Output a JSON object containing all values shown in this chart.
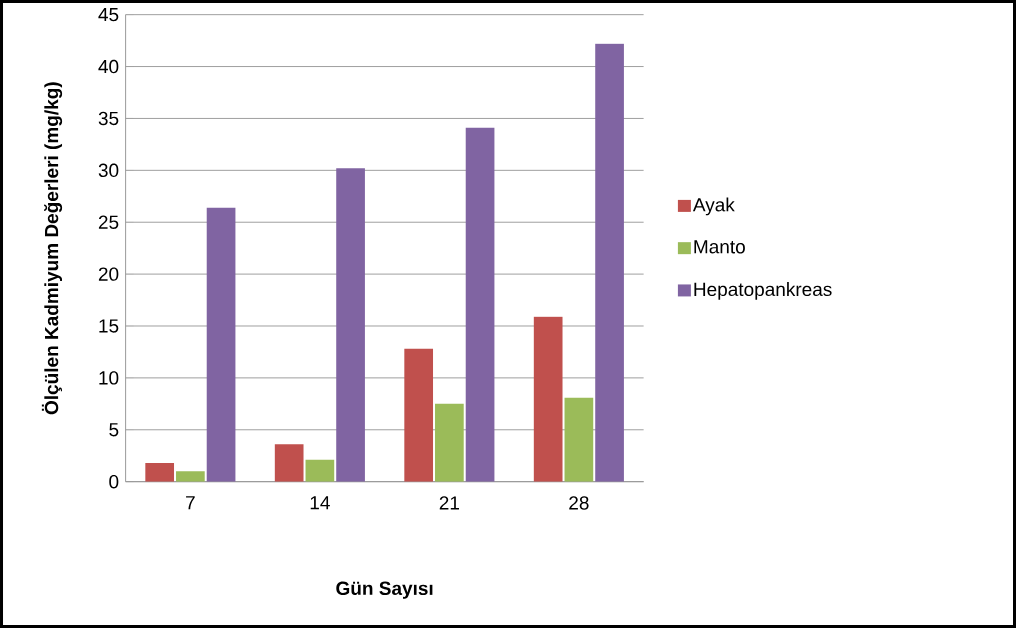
{
  "chart_data": {
    "type": "bar",
    "xlabel": "Gün Sayısı",
    "ylabel": "Ölçülen Kadmiyum Değerleri (mg/kg)",
    "categories": [
      "7",
      "14",
      "21",
      "28"
    ],
    "series": [
      {
        "name": "Ayak",
        "color": "#c0504d",
        "values": [
          1.8,
          3.6,
          12.8,
          15.9
        ]
      },
      {
        "name": "Manto",
        "color": "#9bbb59",
        "values": [
          1.0,
          2.1,
          7.5,
          8.1
        ]
      },
      {
        "name": "Hepatopankreas",
        "color": "#8064a2",
        "values": [
          26.4,
          30.2,
          34.1,
          42.2
        ]
      }
    ],
    "ylim": [
      0,
      45
    ],
    "yticks": [
      0,
      5,
      10,
      15,
      20,
      25,
      30,
      35,
      40,
      45
    ],
    "grid": "y",
    "legend": "right"
  }
}
